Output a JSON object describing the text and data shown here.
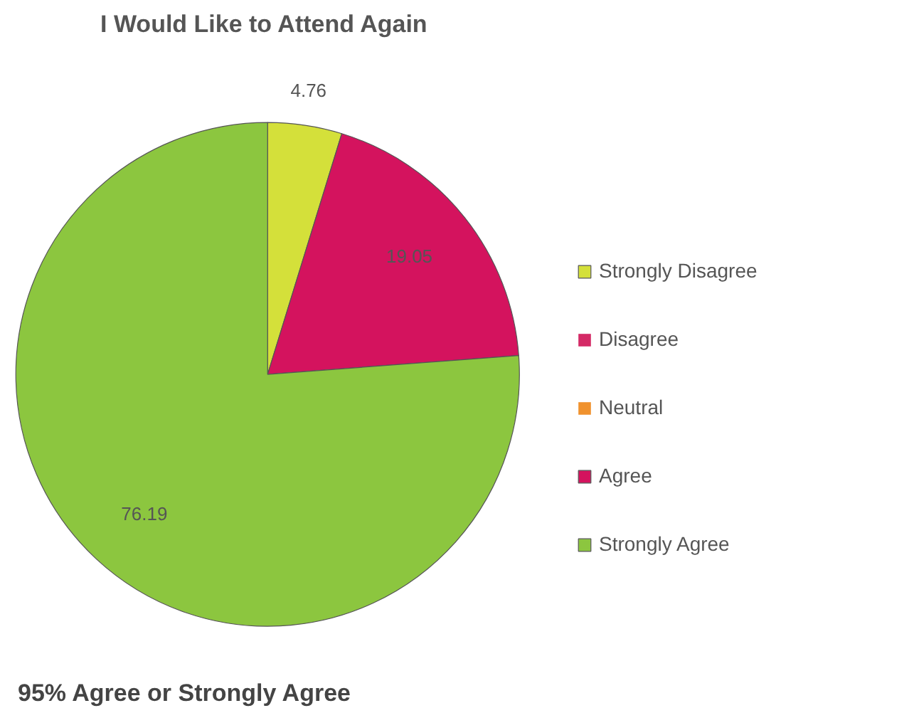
{
  "chart_data": {
    "type": "pie",
    "title": "I Would Like to Attend Again",
    "categories": [
      "Strongly Disagree",
      "Disagree",
      "Neutral",
      "Agree",
      "Strongly Agree"
    ],
    "values": [
      4.76,
      0,
      0,
      19.05,
      76.19
    ],
    "colors": [
      "#d4e03a",
      "#d42a66",
      "#f0922e",
      "#d4135e",
      "#8cc63f"
    ],
    "value_labels": [
      "4.76",
      null,
      null,
      "19.05",
      "76.19"
    ],
    "legend": "right",
    "annotations": [
      "95% Agree or Strongly Agree"
    ]
  }
}
